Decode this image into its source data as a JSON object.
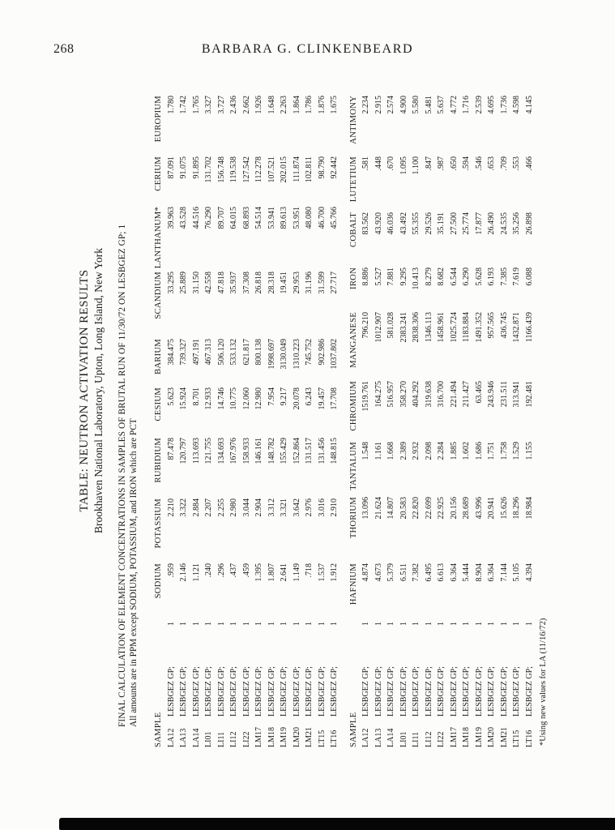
{
  "page": {
    "number": "268",
    "running_head": "BARBARA G. CLINKENBEARD"
  },
  "doc": {
    "title": "TABLE: NEUTRON ACTIVATION RESULTS",
    "subtitle": "Brookhaven National Laboratory, Upton, Long Island, New York",
    "note1": "FINAL CALCULATION OF ELEMENT CONCENTRATIONS IN SAMPLES OF BRUTAL RUN OF 11/30/72 ON LESBGEZ GP; 1",
    "note2": "All amounts are in PPM except SODIUM, POTASSIUM, and IRON which are PCT",
    "footnote": "*Using new values for LA (11/16/72)"
  },
  "tables": [
    {
      "headers": [
        "SAMPLE",
        "SODIUM",
        "POTASSIUM",
        "RUBIDIUM",
        "CESIUM",
        "BARIUM",
        "SCANDIUM",
        "LANTHANUM*",
        "CERIUM",
        "EUROPIUM"
      ],
      "rows": [
        {
          "sample": "LA12",
          "group": "LESBGEZ GP;",
          "n": "1",
          "values": [
            ".959",
            "2.210",
            "87.478",
            "5.623",
            "384.475",
            "33.295",
            "39.963",
            "87.091",
            "1.780"
          ]
        },
        {
          "sample": "LA13",
          "group": "LESBGEZ GP;",
          "n": "1",
          "values": [
            "2.146",
            "3.322",
            "120.797",
            "15.924",
            "739.327",
            "25.889",
            "43.528",
            "91.075",
            "1.742"
          ]
        },
        {
          "sample": "LA14",
          "group": "LESBGEZ GP;",
          "n": "1",
          "values": [
            "1.121",
            "2.884",
            "113.693",
            "8.701",
            "497.191",
            "31.150",
            "44.516",
            "91.895",
            "1.765"
          ]
        },
        {
          "sample": "LI01",
          "group": "LESBGEZ GP;",
          "n": "1",
          "values": [
            ".240",
            "2.207",
            "121.755",
            "12.933",
            "467.313",
            "42.558",
            "76.290",
            "131.702",
            "3.327"
          ]
        },
        {
          "sample": "LI11",
          "group": "LESBGEZ GP;",
          "n": "1",
          "values": [
            ".296",
            "2.255",
            "134.693",
            "14.746",
            "506.120",
            "47.818",
            "89.707",
            "156.748",
            "3.727"
          ]
        },
        {
          "sample": "LI12",
          "group": "LESBGEZ GP;",
          "n": "1",
          "values": [
            ".437",
            "2.980",
            "167.976",
            "10.775",
            "533.132",
            "35.937",
            "64.015",
            "119.538",
            "2.436"
          ]
        },
        {
          "sample": "LI22",
          "group": "LESBGEZ GP;",
          "n": "1",
          "values": [
            ".459",
            "3.044",
            "158.933",
            "12.060",
            "621.817",
            "37.308",
            "68.893",
            "127.542",
            "2.662"
          ]
        },
        {
          "sample": "LM17",
          "group": "LESBGEZ GP;",
          "n": "1",
          "values": [
            "1.395",
            "2.904",
            "146.161",
            "12.980",
            "800.138",
            "26.818",
            "54.514",
            "112.278",
            "1.926"
          ]
        },
        {
          "sample": "LM18",
          "group": "LESBGEZ GP;",
          "n": "1",
          "values": [
            "1.807",
            "3.312",
            "148.782",
            "7.954",
            "1998.697",
            "28.318",
            "53.941",
            "107.521",
            "1.648"
          ]
        },
        {
          "sample": "LM19",
          "group": "LESBGEZ GP;",
          "n": "1",
          "values": [
            "2.641",
            "3.321",
            "155.429",
            "9.217",
            "3130.049",
            "19.451",
            "89.613",
            "202.015",
            "2.263"
          ]
        },
        {
          "sample": "LM20",
          "group": "LESBGEZ GP;",
          "n": "1",
          "values": [
            "1.149",
            "3.642",
            "152.864",
            "20.078",
            "1310.223",
            "29.953",
            "53.951",
            "111.874",
            "1.864"
          ]
        },
        {
          "sample": "LM21",
          "group": "LESBGEZ GP;",
          "n": "1",
          "values": [
            ".718",
            "2.976",
            "131.517",
            "6.243",
            "745.752",
            "31.196",
            "48.080",
            "102.811",
            "1.786"
          ]
        },
        {
          "sample": "LT15",
          "group": "LESBGEZ GP;",
          "n": "1",
          "values": [
            "1.537",
            "3.016",
            "131.456",
            "19.457",
            "902.986",
            "31.599",
            "46.700",
            "98.790",
            "1.876"
          ]
        },
        {
          "sample": "LT16",
          "group": "LESBGEZ GP;",
          "n": "1",
          "values": [
            "1.912",
            "2.910",
            "148.815",
            "17.708",
            "1037.802",
            "27.717",
            "45.766",
            "92.442",
            "1.675"
          ]
        }
      ]
    },
    {
      "headers": [
        "SAMPLE",
        "HAFNIUM",
        "THORIUM",
        "TANTALUM",
        "CHROMIUM",
        "MANGANESE",
        "IRON",
        "COBALT",
        "LUTETIUM",
        "ANTIMONY"
      ],
      "rows": [
        {
          "sample": "LA12",
          "group": "LESBGEZ GP;",
          "n": "1",
          "values": [
            "4.874",
            "13.096",
            "1.548",
            "1519.761",
            "796.210",
            "8.886",
            "83.562",
            ".581",
            "2.234"
          ]
        },
        {
          "sample": "LA13",
          "group": "LESBGEZ GP;",
          "n": "1",
          "values": [
            "4.673",
            "21.624",
            "1.161",
            "164.275",
            "1012.907",
            "5.527",
            "43.920",
            ".448",
            "2.915"
          ]
        },
        {
          "sample": "LA14",
          "group": "LESBGEZ GP;",
          "n": "1",
          "values": [
            "5.379",
            "14.807",
            "1.668",
            "516.957",
            "581.028",
            "7.881",
            "46.036",
            ".670",
            "2.574"
          ]
        },
        {
          "sample": "LI01",
          "group": "LESBGEZ GP;",
          "n": "1",
          "values": [
            "6.511",
            "20.583",
            "2.389",
            "358.270",
            "2383.241",
            "9.295",
            "43.492",
            "1.095",
            "4.900"
          ]
        },
        {
          "sample": "LI11",
          "group": "LESBGEZ GP;",
          "n": "1",
          "values": [
            "7.382",
            "22.820",
            "2.932",
            "404.292",
            "2838.306",
            "10.413",
            "55.355",
            "1.100",
            "5.580"
          ]
        },
        {
          "sample": "LI12",
          "group": "LESBGEZ GP;",
          "n": "1",
          "values": [
            "6.495",
            "22.699",
            "2.098",
            "319.638",
            "1346.113",
            "8.279",
            "29.526",
            ".847",
            "5.481"
          ]
        },
        {
          "sample": "LI22",
          "group": "LESBGEZ GP;",
          "n": "1",
          "values": [
            "6.613",
            "22.925",
            "2.284",
            "316.700",
            "1458.961",
            "8.682",
            "35.191",
            ".987",
            "5.637"
          ]
        },
        {
          "sample": "LM17",
          "group": "LESBGEZ GP;",
          "n": "1",
          "values": [
            "6.364",
            "20.156",
            "1.885",
            "221.494",
            "1025.724",
            "6.544",
            "27.500",
            ".650",
            "4.772"
          ]
        },
        {
          "sample": "LM18",
          "group": "LESBGEZ GP;",
          "n": "1",
          "values": [
            "5.444",
            "28.689",
            "1.602",
            "211.427",
            "1183.884",
            "6.290",
            "25.774",
            ".594",
            "1.716"
          ]
        },
        {
          "sample": "LM19",
          "group": "LESBGEZ GP;",
          "n": "1",
          "values": [
            "8.904",
            "43.996",
            "1.686",
            "63.465",
            "1491.352",
            "5.628",
            "17.877",
            ".546",
            "2.539"
          ]
        },
        {
          "sample": "LM20",
          "group": "LESBGEZ GP;",
          "n": "1",
          "values": [
            "6.364",
            "20.941",
            "1.751",
            "243.946",
            "957.565",
            "6.193",
            "26.490",
            ".653",
            "4.695"
          ]
        },
        {
          "sample": "LM21",
          "group": "LESBGEZ GP;",
          "n": "1",
          "values": [
            "7.144",
            "15.626",
            "1.758",
            "231.511",
            "436.745",
            "7.385",
            "24.535",
            ".709",
            "1.736"
          ]
        },
        {
          "sample": "LT15",
          "group": "LESBGEZ GP;",
          "n": "1",
          "values": [
            "5.105",
            "18.296",
            "1.529",
            "313.941",
            "1432.871",
            "7.619",
            "35.256",
            ".553",
            "4.598"
          ]
        },
        {
          "sample": "LT16",
          "group": "LESBGEZ GP;",
          "n": "1",
          "values": [
            "4.394",
            "18.984",
            "1.155",
            "192.481",
            "1166.439",
            "6.088",
            "26.898",
            ".466",
            "4.145"
          ]
        }
      ]
    }
  ]
}
